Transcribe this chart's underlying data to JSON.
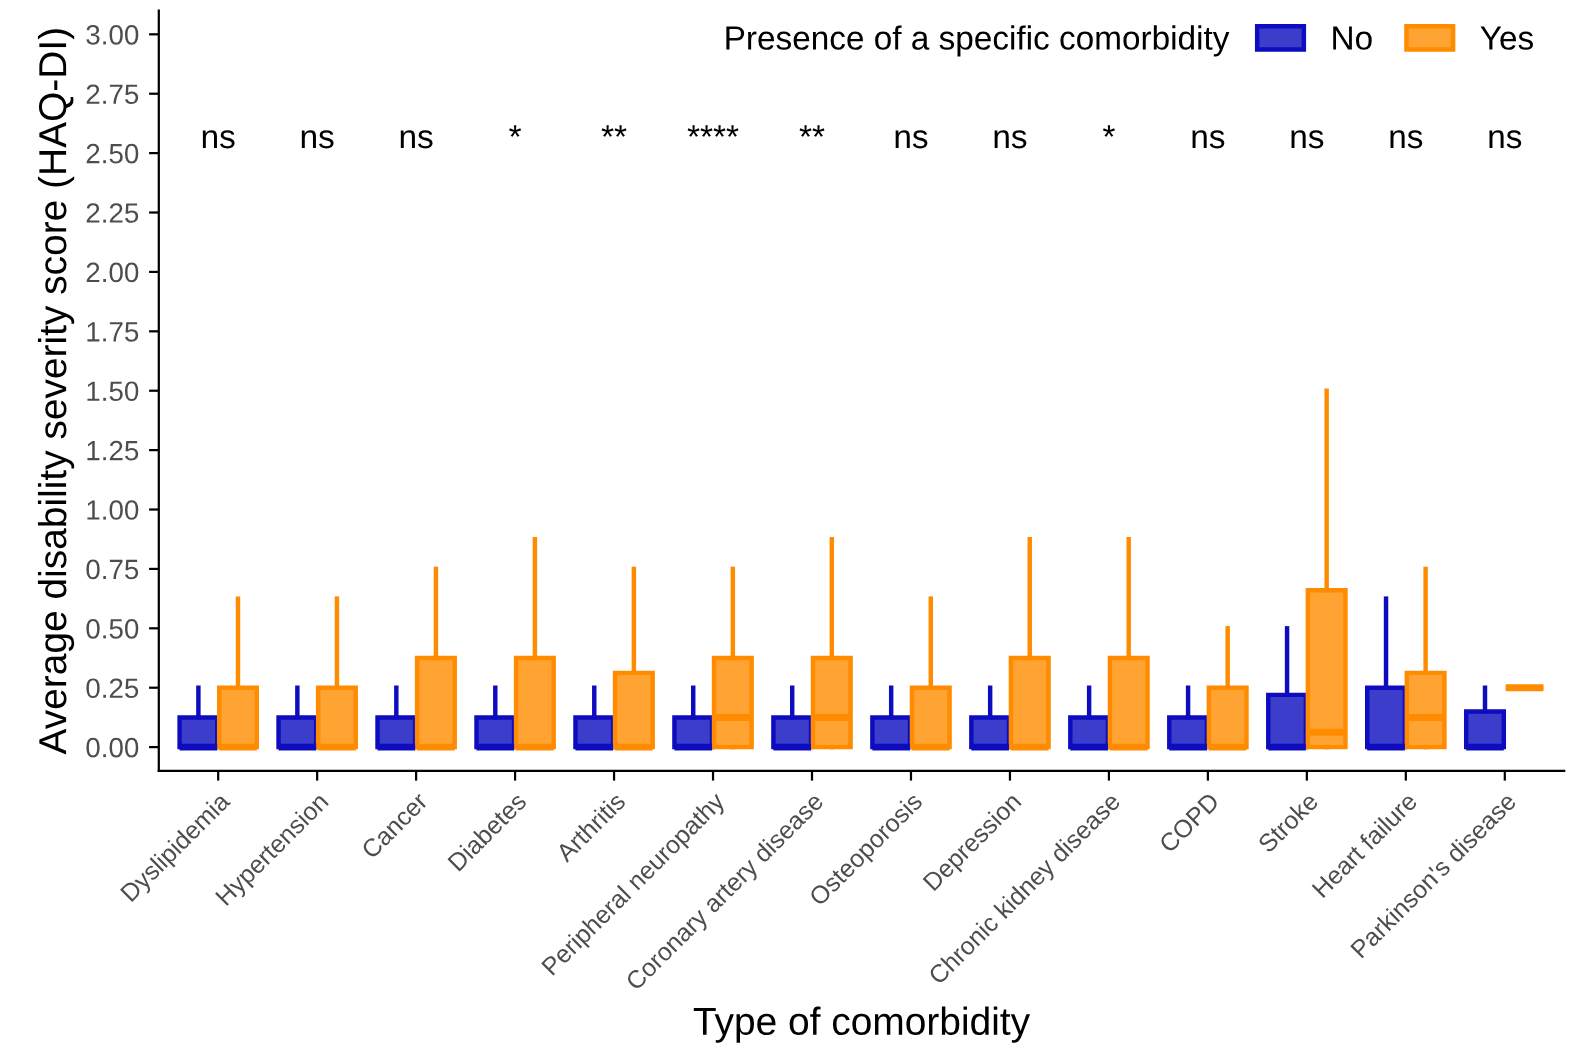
{
  "chart_data": {
    "type": "box",
    "xlabel": "Type of comorbidity",
    "ylabel": "Average disability severity score (HAQ-DI)",
    "legend_title": "Presence of a specific comorbidity",
    "categories": [
      "Dyslipidemia",
      "Hypertension",
      "Cancer",
      "Diabetes",
      "Arthritis",
      "Peripheral neuropathy",
      "Coronary artery disease",
      "Osteoporosis",
      "Depression",
      "Chronic kidney disease",
      "COPD",
      "Stroke",
      "Heart failure",
      "Parkinson's disease"
    ],
    "ylim": [
      -0.1,
      3.1
    ],
    "yticks": [
      {
        "value": 0,
        "label": "0.00"
      },
      {
        "value": 0.25,
        "label": "0.25"
      },
      {
        "value": 0.5,
        "label": "0.50"
      },
      {
        "value": 0.75,
        "label": "0.75"
      },
      {
        "value": 1,
        "label": "1.00"
      },
      {
        "value": 1.25,
        "label": "1.25"
      },
      {
        "value": 1.5,
        "label": "1.50"
      },
      {
        "value": 1.75,
        "label": "1.75"
      },
      {
        "value": 2,
        "label": "2.00"
      },
      {
        "value": 2.25,
        "label": "2.25"
      },
      {
        "value": 2.5,
        "label": "2.50"
      },
      {
        "value": 2.75,
        "label": "2.75"
      },
      {
        "value": 3,
        "label": "3.00"
      }
    ],
    "grid": false,
    "legend": "top right",
    "series": [
      {
        "name": "No",
        "color": "#0d0dbf",
        "boxes": [
          {
            "low": 0,
            "q1": 0,
            "median": 0,
            "q3": 0.125,
            "high": 0.25
          },
          {
            "low": 0,
            "q1": 0,
            "median": 0,
            "q3": 0.125,
            "high": 0.25
          },
          {
            "low": 0,
            "q1": 0,
            "median": 0,
            "q3": 0.125,
            "high": 0.25
          },
          {
            "low": 0,
            "q1": 0,
            "median": 0,
            "q3": 0.125,
            "high": 0.25
          },
          {
            "low": 0,
            "q1": 0,
            "median": 0,
            "q3": 0.125,
            "high": 0.25
          },
          {
            "low": 0,
            "q1": 0,
            "median": 0,
            "q3": 0.125,
            "high": 0.25
          },
          {
            "low": 0,
            "q1": 0,
            "median": 0,
            "q3": 0.125,
            "high": 0.25
          },
          {
            "low": 0,
            "q1": 0,
            "median": 0,
            "q3": 0.125,
            "high": 0.25
          },
          {
            "low": 0,
            "q1": 0,
            "median": 0,
            "q3": 0.125,
            "high": 0.25
          },
          {
            "low": 0,
            "q1": 0,
            "median": 0,
            "q3": 0.125,
            "high": 0.25
          },
          {
            "low": 0,
            "q1": 0,
            "median": 0,
            "q3": 0.125,
            "high": 0.25
          },
          {
            "low": 0,
            "q1": 0,
            "median": 0,
            "q3": 0.22,
            "high": 0.5
          },
          {
            "low": 0,
            "q1": 0,
            "median": 0,
            "q3": 0.25,
            "high": 0.625
          },
          {
            "low": 0,
            "q1": 0,
            "median": 0,
            "q3": 0.15,
            "high": 0.25
          }
        ]
      },
      {
        "name": "Yes",
        "color": "#ff8c00",
        "boxes": [
          {
            "low": 0,
            "q1": 0,
            "median": 0,
            "q3": 0.25,
            "high": 0.625
          },
          {
            "low": 0,
            "q1": 0,
            "median": 0,
            "q3": 0.25,
            "high": 0.625
          },
          {
            "low": 0,
            "q1": 0,
            "median": 0,
            "q3": 0.375,
            "high": 0.75
          },
          {
            "low": 0,
            "q1": 0,
            "median": 0,
            "q3": 0.375,
            "high": 0.875
          },
          {
            "low": 0,
            "q1": 0,
            "median": 0,
            "q3": 0.3125,
            "high": 0.75
          },
          {
            "low": 0,
            "q1": 0,
            "median": 0.125,
            "q3": 0.375,
            "high": 0.75
          },
          {
            "low": 0,
            "q1": 0,
            "median": 0.125,
            "q3": 0.375,
            "high": 0.875
          },
          {
            "low": 0,
            "q1": 0,
            "median": 0,
            "q3": 0.25,
            "high": 0.625
          },
          {
            "low": 0,
            "q1": 0,
            "median": 0,
            "q3": 0.375,
            "high": 0.875
          },
          {
            "low": 0,
            "q1": 0,
            "median": 0,
            "q3": 0.375,
            "high": 0.875
          },
          {
            "low": 0,
            "q1": 0,
            "median": 0,
            "q3": 0.25,
            "high": 0.5
          },
          {
            "low": 0,
            "q1": 0,
            "median": 0.0625,
            "q3": 0.66,
            "high": 1.5
          },
          {
            "low": 0,
            "q1": 0,
            "median": 0.125,
            "q3": 0.3125,
            "high": 0.75
          },
          {
            "low": 0.25,
            "q1": 0.25,
            "median": 0.25,
            "q3": 0.25,
            "high": 0.25
          }
        ]
      }
    ],
    "annotations": [
      "ns",
      "ns",
      "ns",
      "*",
      "**",
      "****",
      "**",
      "ns",
      "ns",
      "*",
      "ns",
      "ns",
      "ns",
      "ns"
    ]
  }
}
